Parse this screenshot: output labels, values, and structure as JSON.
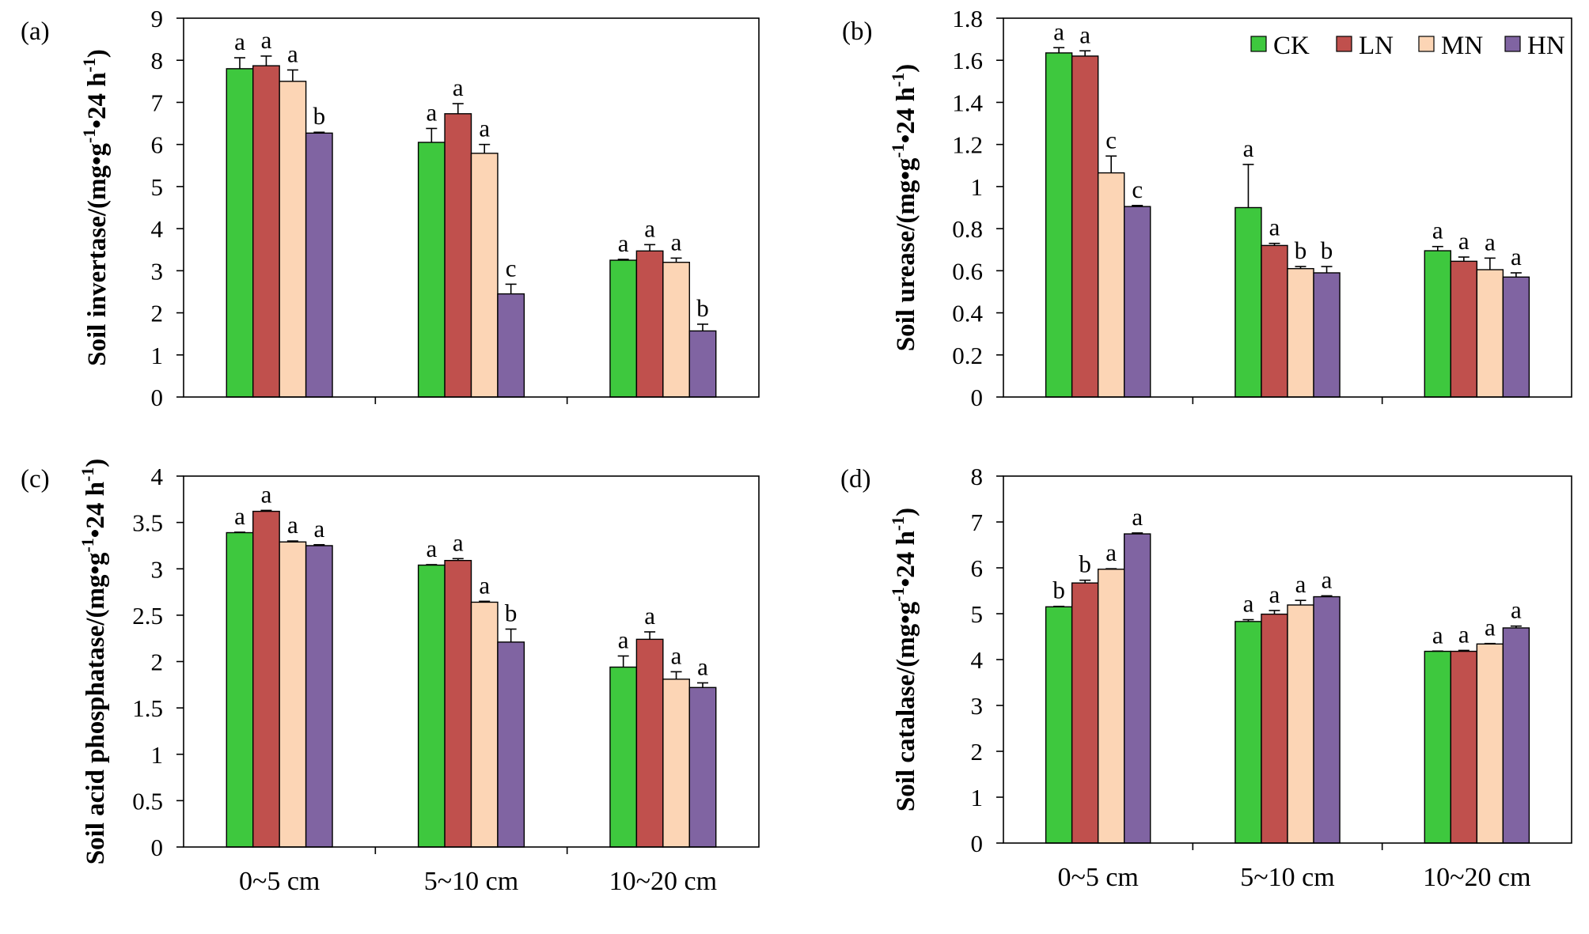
{
  "chart_data": [
    {
      "panel_label": "(a)",
      "type": "bar",
      "ylabel": [
        {
          "text": "Soil invertase/(mg•g"
        },
        {
          "text": "-1",
          "sup": true
        },
        {
          "text": "•24 h"
        },
        {
          "text": "-1",
          "sup": true
        },
        {
          "text": ")"
        }
      ],
      "ylim": [
        0,
        9
      ],
      "yticks": [
        "0",
        "1",
        "2",
        "3",
        "4",
        "5",
        "6",
        "7",
        "8",
        "9"
      ],
      "categories": [
        "0~5 cm",
        "5~10 cm",
        "10~20 cm"
      ],
      "show_category_labels": false,
      "show_legend": false,
      "series": [
        {
          "name": "CK",
          "color": "#3ec83e",
          "values": [
            7.8,
            6.05,
            3.25
          ],
          "errors": [
            0.26,
            0.33,
            0.02
          ],
          "letters": [
            "a",
            "a",
            "a"
          ]
        },
        {
          "name": "LN",
          "color": "#c0504d",
          "values": [
            7.87,
            6.73,
            3.47
          ],
          "errors": [
            0.23,
            0.24,
            0.15
          ],
          "letters": [
            "a",
            "a",
            "a"
          ]
        },
        {
          "name": "MN",
          "color": "#fcd5b5",
          "values": [
            7.5,
            5.79,
            3.2
          ],
          "errors": [
            0.27,
            0.21,
            0.1
          ],
          "letters": [
            "a",
            "a",
            "a"
          ]
        },
        {
          "name": "HN",
          "color": "#8064a2",
          "values": [
            6.27,
            2.45,
            1.57
          ],
          "errors": [
            0.02,
            0.23,
            0.16
          ],
          "letters": [
            "b",
            "c",
            "b"
          ]
        }
      ]
    },
    {
      "panel_label": "(b)",
      "type": "bar",
      "ylabel": [
        {
          "text": "Soil urease/(mg•g"
        },
        {
          "text": "-1",
          "sup": true
        },
        {
          "text": "•24 h"
        },
        {
          "text": "-1",
          "sup": true
        },
        {
          "text": ")"
        }
      ],
      "ylim": [
        0,
        1.8
      ],
      "yticks": [
        "0",
        "0.2",
        "0.4",
        "0.6",
        "0.8",
        "1",
        "1.2",
        "1.4",
        "1.6",
        "1.8"
      ],
      "categories": [
        "0~5 cm",
        "5~10 cm",
        "10~20 cm"
      ],
      "show_category_labels": false,
      "show_legend": true,
      "legend_position": "top-right",
      "series": [
        {
          "name": "CK",
          "color": "#3ec83e",
          "values": [
            1.635,
            0.9,
            0.695
          ],
          "errors": [
            0.025,
            0.205,
            0.02
          ],
          "letters": [
            "a",
            "a",
            "a"
          ]
        },
        {
          "name": "LN",
          "color": "#c0504d",
          "values": [
            1.62,
            0.72,
            0.645
          ],
          "errors": [
            0.025,
            0.01,
            0.02
          ],
          "letters": [
            "a",
            "a",
            "a"
          ]
        },
        {
          "name": "MN",
          "color": "#fcd5b5",
          "values": [
            1.065,
            0.61,
            0.605
          ],
          "errors": [
            0.08,
            0.01,
            0.055
          ],
          "letters": [
            "c",
            "b",
            "a"
          ]
        },
        {
          "name": "HN",
          "color": "#8064a2",
          "values": [
            0.905,
            0.59,
            0.57
          ],
          "errors": [
            0.005,
            0.03,
            0.02
          ],
          "letters": [
            "c",
            "b",
            "a"
          ]
        }
      ]
    },
    {
      "panel_label": "(c)",
      "type": "bar",
      "ylabel": [
        {
          "text": "Soil acid phosphatase/(mg•g"
        },
        {
          "text": "-1",
          "sup": true
        },
        {
          "text": "•24 h"
        },
        {
          "text": "-1",
          "sup": true
        },
        {
          "text": ")"
        }
      ],
      "ylim": [
        0,
        4
      ],
      "yticks": [
        "0",
        "0.5",
        "1",
        "1.5",
        "2",
        "2.5",
        "3",
        "3.5",
        "4"
      ],
      "categories": [
        "0~5 cm",
        "5~10 cm",
        "10~20 cm"
      ],
      "show_category_labels": true,
      "show_legend": false,
      "series": [
        {
          "name": "CK",
          "color": "#3ec83e",
          "values": [
            3.39,
            3.04,
            1.94
          ],
          "errors": [
            0.005,
            0.005,
            0.12
          ],
          "letters": [
            "a",
            "a",
            "a"
          ]
        },
        {
          "name": "LN",
          "color": "#c0504d",
          "values": [
            3.62,
            3.09,
            2.24
          ],
          "errors": [
            0.01,
            0.02,
            0.08
          ],
          "letters": [
            "a",
            "a",
            "a"
          ]
        },
        {
          "name": "MN",
          "color": "#fcd5b5",
          "values": [
            3.29,
            2.64,
            1.81
          ],
          "errors": [
            0.01,
            0.01,
            0.08
          ],
          "letters": [
            "a",
            "a",
            "a"
          ]
        },
        {
          "name": "HN",
          "color": "#8064a2",
          "values": [
            3.25,
            2.21,
            1.72
          ],
          "errors": [
            0.01,
            0.14,
            0.05
          ],
          "letters": [
            "a",
            "b",
            "a"
          ]
        }
      ]
    },
    {
      "panel_label": "(d)",
      "type": "bar",
      "ylabel": [
        {
          "text": "Soil catalase/(mg•g"
        },
        {
          "text": "-1",
          "sup": true
        },
        {
          "text": "•24 h"
        },
        {
          "text": "-1",
          "sup": true
        },
        {
          "text": ")"
        }
      ],
      "ylim": [
        0,
        8
      ],
      "yticks": [
        "0",
        "1",
        "2",
        "3",
        "4",
        "5",
        "6",
        "7",
        "8"
      ],
      "categories": [
        "0~5 cm",
        "5~10 cm",
        "10~20 cm"
      ],
      "show_category_labels": true,
      "show_legend": false,
      "series": [
        {
          "name": "CK",
          "color": "#3ec83e",
          "values": [
            5.15,
            4.83,
            4.18
          ],
          "errors": [
            0.01,
            0.04,
            0.005
          ],
          "letters": [
            "b",
            "a",
            "a"
          ]
        },
        {
          "name": "LN",
          "color": "#c0504d",
          "values": [
            5.67,
            4.99,
            4.18
          ],
          "errors": [
            0.06,
            0.08,
            0.02
          ],
          "letters": [
            "b",
            "a",
            "a"
          ]
        },
        {
          "name": "MN",
          "color": "#fcd5b5",
          "values": [
            5.97,
            5.19,
            4.34
          ],
          "errors": [
            0.01,
            0.1,
            0.01
          ],
          "letters": [
            "a",
            "a",
            "a"
          ]
        },
        {
          "name": "HN",
          "color": "#8064a2",
          "values": [
            6.74,
            5.37,
            4.69
          ],
          "errors": [
            0.02,
            0.02,
            0.04
          ],
          "letters": [
            "a",
            "a",
            "a"
          ]
        }
      ]
    }
  ]
}
